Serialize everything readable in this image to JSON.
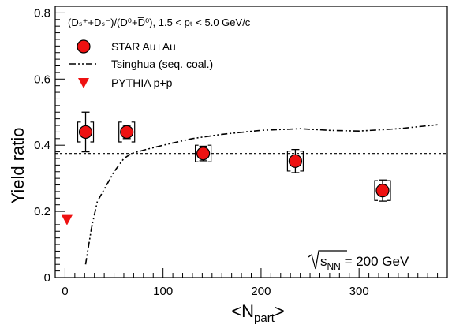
{
  "chart_data": {
    "type": "scatter",
    "ylabel": "Yield ratio",
    "xlabel_main": "<N",
    "xlabel_sub": "part",
    "xlabel_end": ">",
    "xlim": [
      -10,
      390
    ],
    "ylim": [
      0,
      0.82
    ],
    "x_ticks": [
      0,
      100,
      200,
      300
    ],
    "x_tick_labels": [
      "0",
      "100",
      "200",
      "300"
    ],
    "y_ticks": [
      0,
      0.2,
      0.4,
      0.6,
      0.8
    ],
    "y_tick_labels": [
      "0",
      "0.2",
      "0.4",
      "0.6",
      "0.8"
    ],
    "grid": false,
    "legend_position": "top-left",
    "legend_title": "(Dₛ⁺+Dₛ⁻)/(D⁰+D̅⁰), 1.5 < pₜ < 5.0 GeV/c",
    "energy_label_pre": "s",
    "energy_label_sub": "NN",
    "energy_label_post": " = 200 GeV",
    "reference_line_y": 0.375,
    "series": [
      {
        "name": "STAR Au+Au",
        "kind": "points",
        "color": "#ee1111",
        "points": [
          {
            "x": 21,
            "y": 0.44,
            "stat_err": 0.06,
            "sys_err": 0.03
          },
          {
            "x": 63,
            "y": 0.44,
            "stat_err": 0.02,
            "sys_err": 0.03
          },
          {
            "x": 141,
            "y": 0.375,
            "stat_err": 0.022,
            "sys_err": 0.025
          },
          {
            "x": 235,
            "y": 0.352,
            "stat_err": 0.035,
            "sys_err": 0.03
          },
          {
            "x": 324,
            "y": 0.263,
            "stat_err": 0.032,
            "sys_err": 0.03
          }
        ]
      },
      {
        "name": "Tsinghua (seq. coal.)",
        "kind": "curve",
        "color": "#000000",
        "x": [
          21,
          27,
          33,
          50,
          60,
          68,
          80,
          100,
          130,
          160,
          200,
          240,
          270,
          300,
          340,
          380
        ],
        "y": [
          0.04,
          0.15,
          0.23,
          0.32,
          0.36,
          0.375,
          0.385,
          0.4,
          0.42,
          0.433,
          0.445,
          0.45,
          0.445,
          0.443,
          0.45,
          0.462
        ]
      },
      {
        "name": "PYTHIA p+p",
        "kind": "triangle",
        "color": "#ee1111",
        "points": [
          {
            "x": 2,
            "y": 0.175
          }
        ]
      }
    ]
  }
}
